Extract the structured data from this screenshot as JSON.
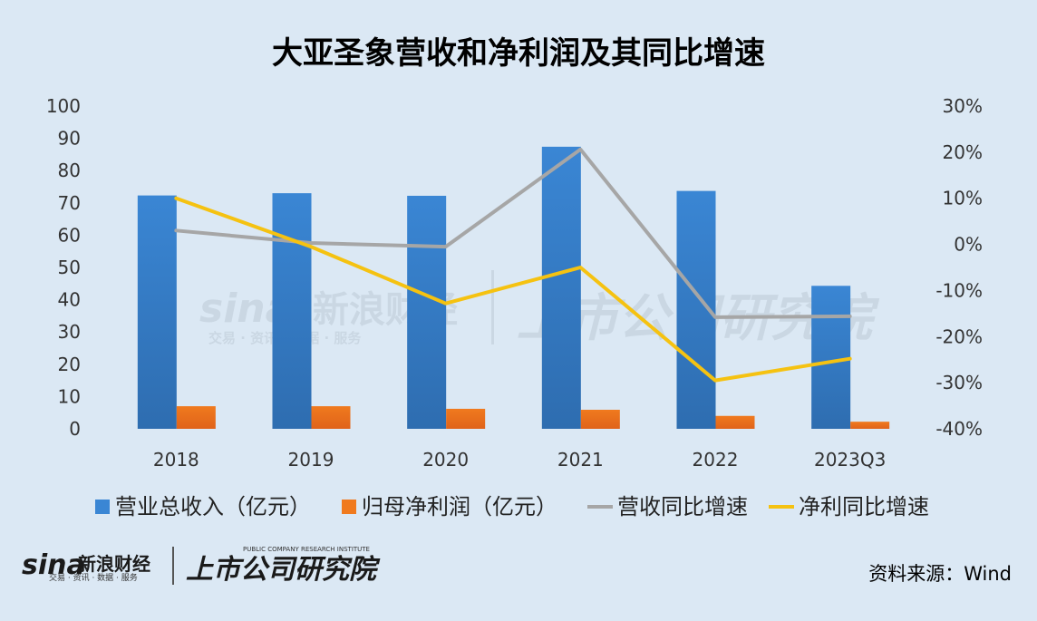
{
  "chart_data": {
    "type": "bar+line",
    "title": "大亚圣象营收和净利润及其同比增速",
    "categories": [
      "2018",
      "2019",
      "2020",
      "2021",
      "2022",
      "2023Q3"
    ],
    "bar_series": [
      {
        "name": "营业总收入（亿元）",
        "values": [
          72.3,
          73.0,
          72.2,
          87.4,
          73.7,
          44.3
        ],
        "color": "#3a86d4"
      },
      {
        "name": "归母净利润（亿元）",
        "values": [
          7.0,
          7.0,
          6.2,
          5.9,
          4.0,
          2.2
        ],
        "color": "#f07a1e"
      }
    ],
    "line_series": [
      {
        "name": "营收同比增速",
        "values": [
          3.0,
          0.3,
          -0.5,
          20.6,
          -15.8,
          -15.6
        ],
        "color": "#a6a6a6"
      },
      {
        "name": "净利同比增速",
        "values": [
          10.0,
          -0.5,
          -12.8,
          -5.0,
          -29.5,
          -24.8
        ],
        "color": "#f5c211"
      }
    ],
    "y_left": {
      "ylim": [
        0,
        100
      ],
      "ticks": [
        "100",
        "90",
        "80",
        "70",
        "60",
        "50",
        "40",
        "30",
        "20",
        "10",
        "0"
      ]
    },
    "y_right": {
      "ylim": [
        -40,
        30
      ],
      "ticks": [
        "30%",
        "20%",
        "10%",
        "0%",
        "-10%",
        "-20%",
        "-30%",
        "-40%"
      ]
    },
    "legend_position": "bottom"
  },
  "footer": {
    "source": "资料来源：Wind",
    "logo_sina": "sina",
    "logo_sina_cn": "新浪财经",
    "logo_sina_sub": "交易 · 资讯 · 数据 · 服务",
    "logo_institute": "上市公司研究院",
    "logo_institute_en": "PUBLIC COMPANY RESEARCH INSTITUTE"
  },
  "colors": {
    "background": "#dbe8f4"
  }
}
